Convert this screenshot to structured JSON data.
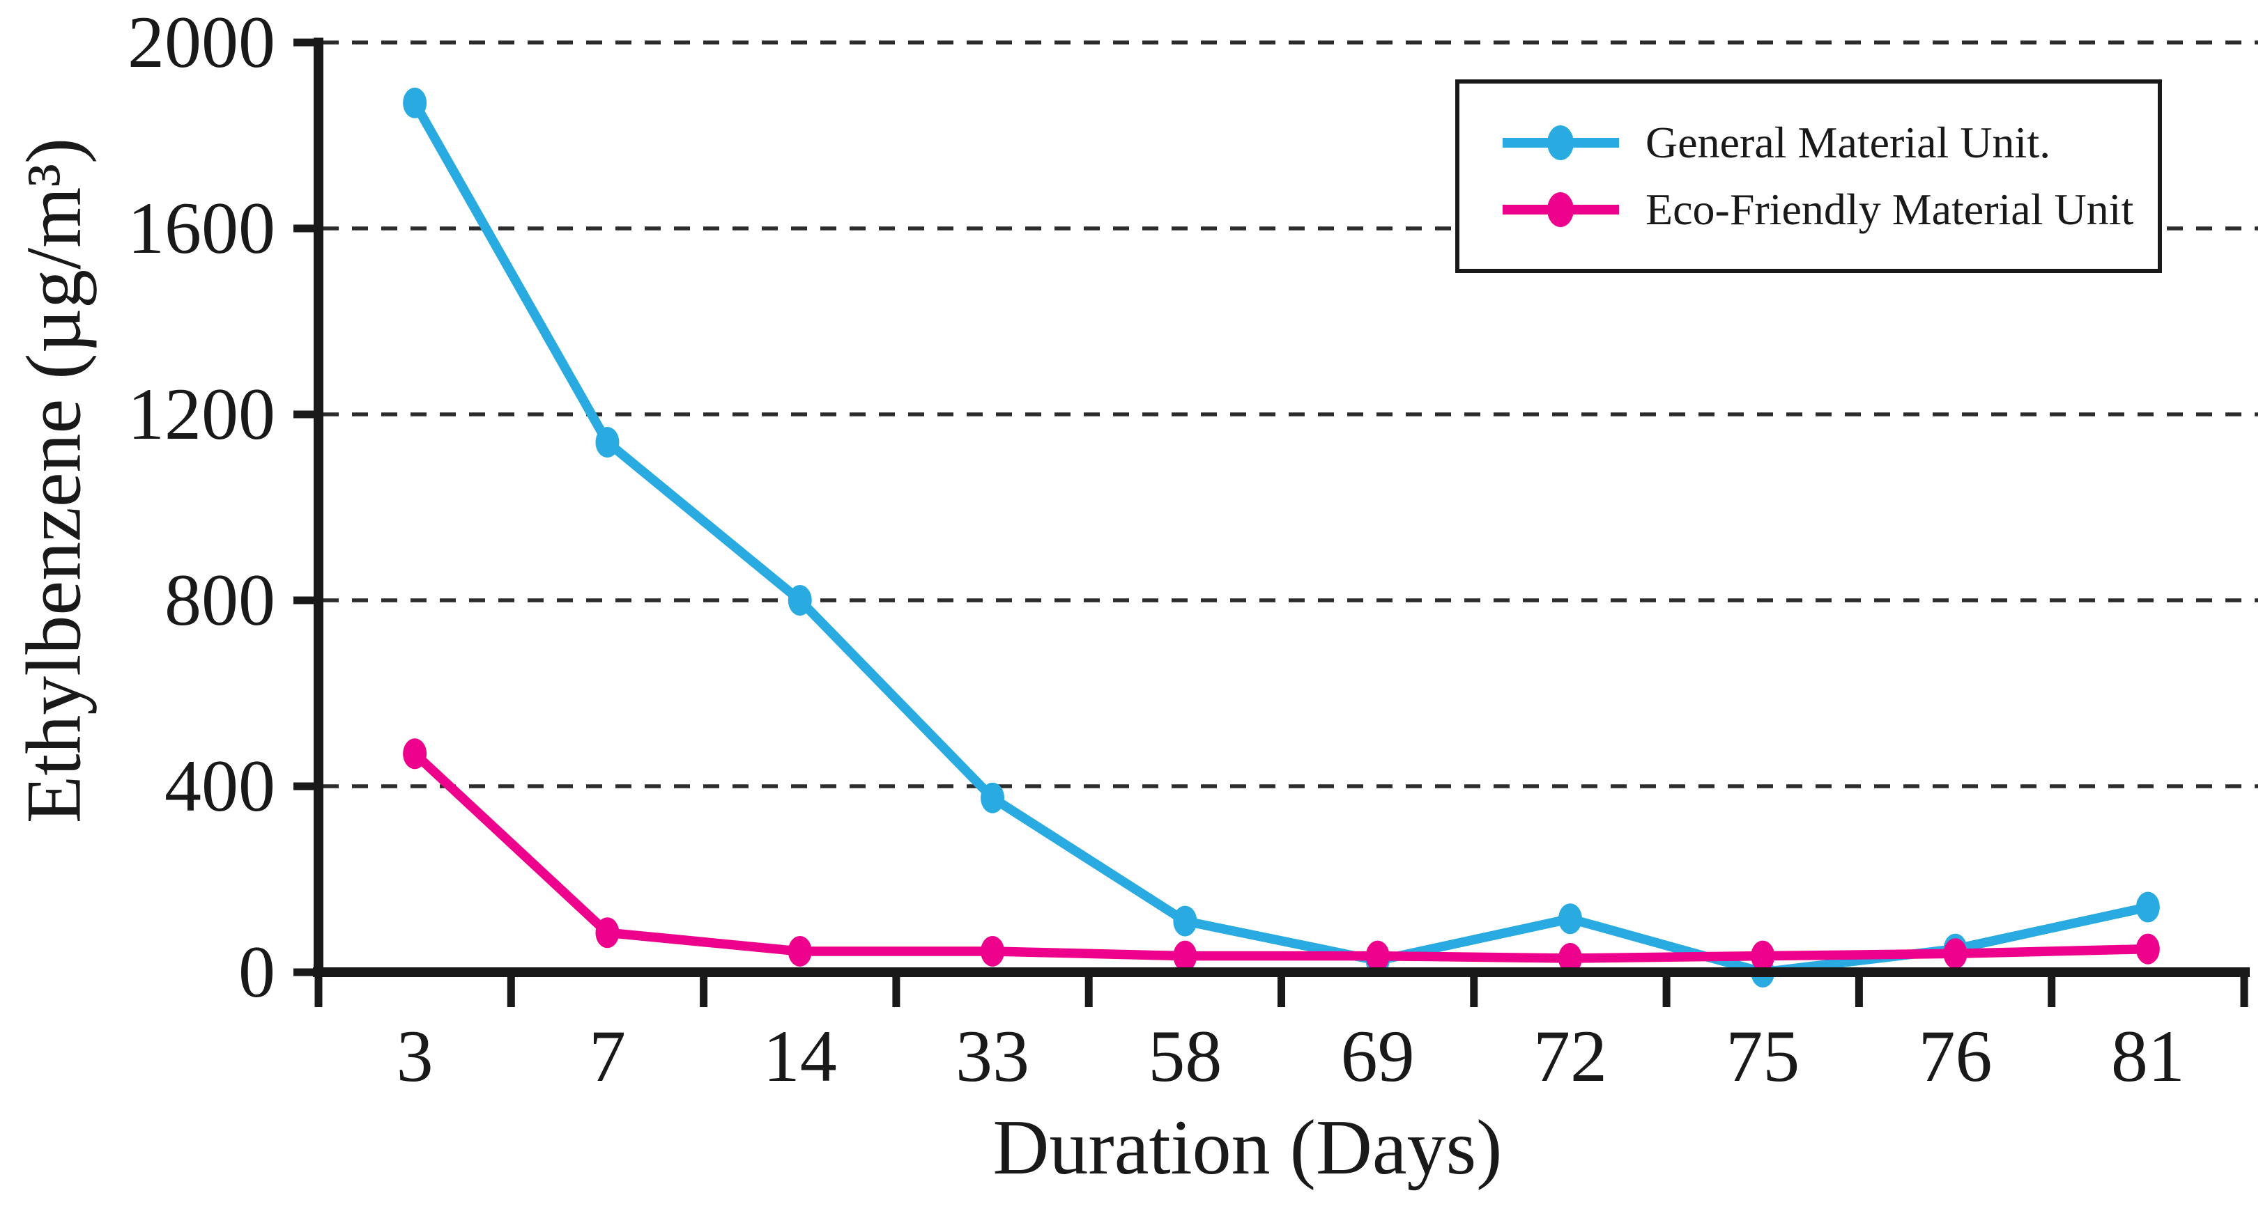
{
  "chart_data": {
    "type": "line",
    "title": "",
    "xlabel": "Duration (Days)",
    "ylabel": "Ethylbenzene (µg/m³)",
    "categories": [
      3,
      7,
      14,
      33,
      58,
      69,
      72,
      75,
      76,
      81
    ],
    "series": [
      {
        "name": "General Material Unit.",
        "color": "#29abe2",
        "values": [
          1870,
          1140,
          800,
          375,
          110,
          25,
          115,
          0,
          50,
          140
        ]
      },
      {
        "name": "Eco-Friendly Material Unit",
        "color": "#ec008c",
        "values": [
          470,
          85,
          45,
          45,
          35,
          35,
          30,
          35,
          40,
          50
        ]
      }
    ],
    "ylim": [
      0,
      2000
    ],
    "yticks": [
      0,
      400,
      800,
      1200,
      1600,
      2000
    ],
    "grid": "horizontal-dashed",
    "legend_position": "top-right",
    "axis_color": "#191919",
    "gridline_color": "#2b2b2b"
  }
}
